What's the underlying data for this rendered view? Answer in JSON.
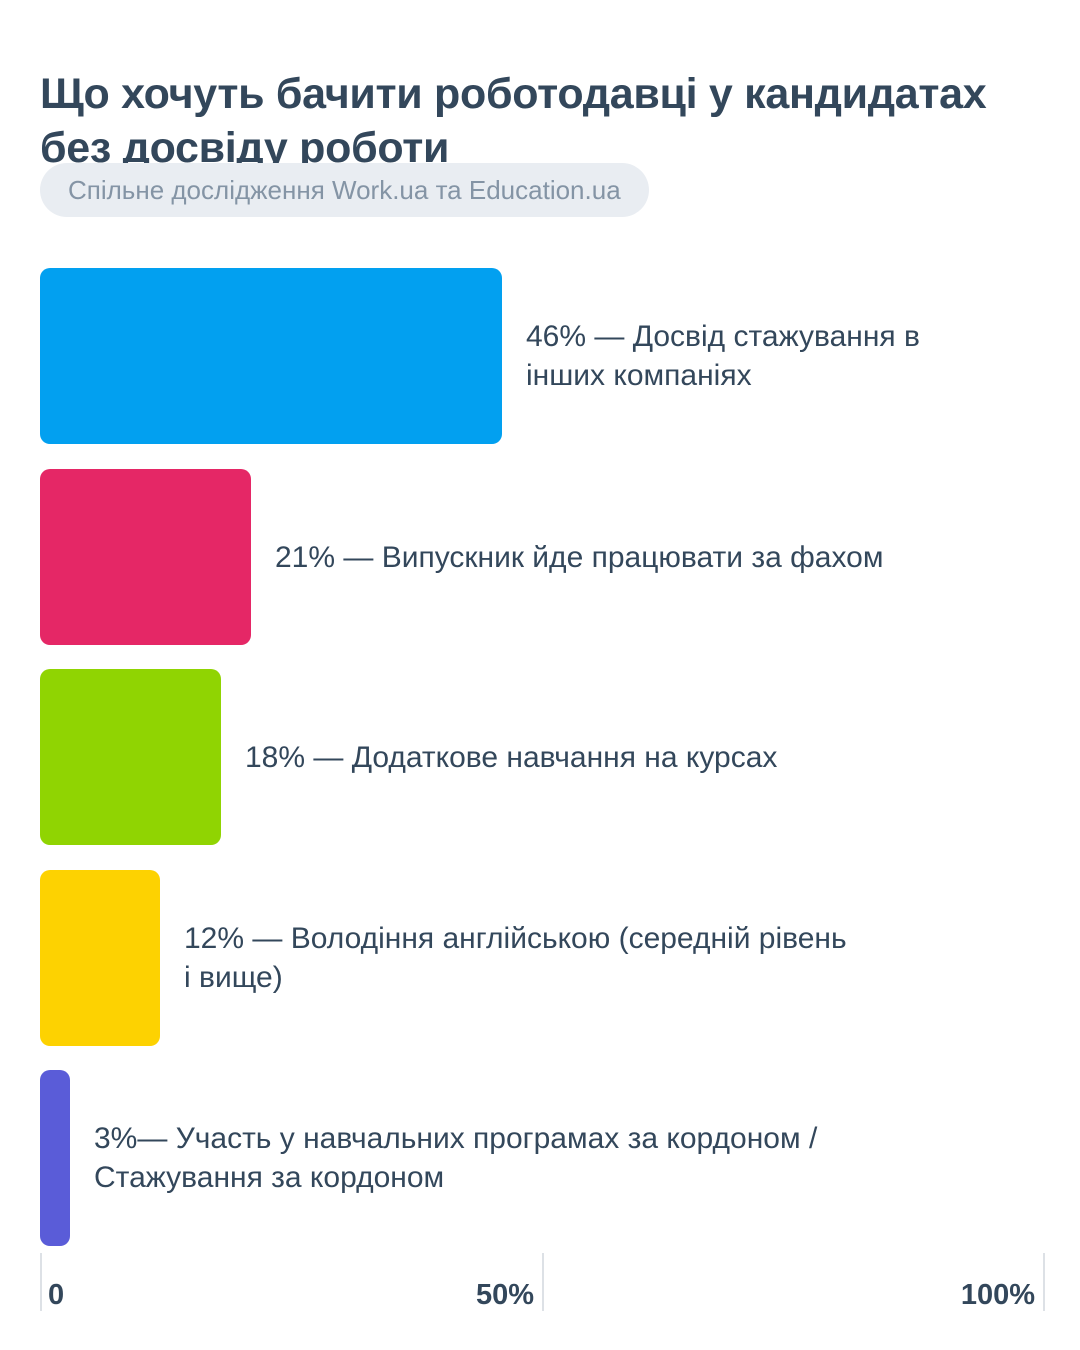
{
  "header": {
    "title": "Що хочуть бачити роботодавці у кандидатах без досвіду роботи",
    "badge": "Спільне дослідження Work.ua та Education.ua"
  },
  "chart_data": {
    "type": "bar",
    "orientation": "horizontal",
    "title": "Що хочуть бачити роботодавці у кандидатах без досвіду роботи",
    "subtitle": "Спільне дослідження Work.ua та Education.ua",
    "xlabel": "",
    "ylabel": "",
    "xlim": [
      0,
      100
    ],
    "grid": false,
    "legend": "none",
    "categories": [
      "Досвід стажування в інших компаніях",
      "Випускник йде працювати за фахом",
      "Додаткове навчання на курсах",
      "Володіння англійською (середній рівень і вище)",
      "Участь у навчальних програмах за кордоном / Стажування за кордоном"
    ],
    "values": [
      46,
      21,
      18,
      12,
      3
    ],
    "bars": [
      {
        "percent": 46,
        "color": "#02a0f0",
        "label": "46% — Досвід стажування в\nінших компаніях"
      },
      {
        "percent": 21,
        "color": "#e52766",
        "label": "21% — Випускник йде працювати за фахом"
      },
      {
        "percent": 18,
        "color": "#90d402",
        "label": "18% — Додаткове навчання на курсах"
      },
      {
        "percent": 12,
        "color": "#fdd201",
        "label": "12% — Володіння англійською (середній рівень\nі вище)"
      },
      {
        "percent": 3,
        "color": "#5a5cd8",
        "label": "3%— Участь у навчальних програмах за кордоном /\nСтажування за кордоном"
      }
    ],
    "x_axis": {
      "ticks": [
        {
          "label": "0",
          "percent": 0,
          "align": "left"
        },
        {
          "label": "50%",
          "percent": 50,
          "align": "right"
        },
        {
          "label": "100%",
          "percent": 100,
          "align": "right"
        }
      ]
    }
  },
  "colors": {
    "text": "#33475b",
    "badge_background": "#e9edf2",
    "badge_text": "#8494a5",
    "tick_line": "#dde1e6",
    "background": "#ffffff"
  }
}
